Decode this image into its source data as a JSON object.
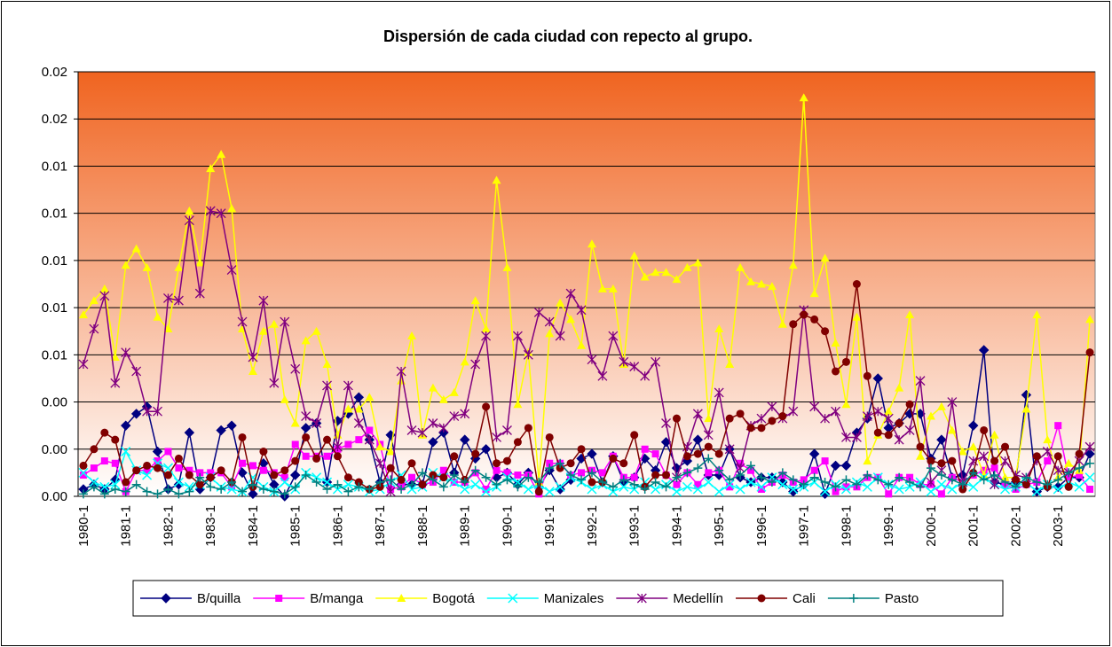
{
  "chart_data": {
    "type": "line",
    "title": "Dispersión de cada ciudad con repecto al grupo.",
    "categories": [
      "1980-1",
      null,
      null,
      null,
      "1981-1",
      null,
      null,
      null,
      "1982-1",
      null,
      null,
      null,
      "1983-1",
      null,
      null,
      null,
      "1984-1",
      null,
      null,
      null,
      "1985-1",
      null,
      null,
      null,
      "1986-1",
      null,
      null,
      null,
      "1987-1",
      null,
      null,
      null,
      "1988-1",
      null,
      null,
      null,
      "1989-1",
      null,
      null,
      null,
      "1990-1",
      null,
      null,
      null,
      "1991-1",
      null,
      null,
      null,
      "1992-1",
      null,
      null,
      null,
      "1993-1",
      null,
      null,
      null,
      "1994-1",
      null,
      null,
      null,
      "1995-1",
      null,
      null,
      null,
      "1996-1",
      null,
      null,
      null,
      "1997-1",
      null,
      null,
      null,
      "1998-1",
      null,
      null,
      null,
      "1999-1",
      null,
      null,
      null,
      "2000-1",
      null,
      null,
      null,
      "2001-1",
      null,
      null,
      null,
      "2002-1",
      null,
      null,
      null,
      "2003-1",
      null,
      null,
      null
    ],
    "ylim": [
      0,
      0.018
    ],
    "yticks": [
      {
        "value": 0,
        "label": "0.00"
      },
      {
        "value": 0.002,
        "label": "0.00"
      },
      {
        "value": 0.004,
        "label": "0.00"
      },
      {
        "value": 0.006,
        "label": "0.01"
      },
      {
        "value": 0.008,
        "label": "0.01"
      },
      {
        "value": 0.01,
        "label": "0.01"
      },
      {
        "value": 0.012,
        "label": "0.01"
      },
      {
        "value": 0.014,
        "label": "0.01"
      },
      {
        "value": 0.016,
        "label": "0.02"
      },
      {
        "value": 0.018,
        "label": "0.02"
      }
    ],
    "grid": true,
    "legend": "bottom",
    "series": [
      {
        "name": "B/quilla",
        "color": "#000080",
        "marker": "diamond",
        "values": [
          0.0003,
          0.0005,
          0.0003,
          0.0007,
          0.003,
          0.0035,
          0.0038,
          0.0019,
          0.0003,
          0.0005,
          0.0027,
          0.0003,
          0.0008,
          0.0028,
          0.003,
          0.001,
          0.0001,
          0.0014,
          0.0005,
          0.0,
          0.0009,
          0.0029,
          0.0031,
          0.0006,
          0.0032,
          0.0035,
          0.0042,
          0.0024,
          0.0006,
          0.0026,
          0.0005,
          0.0005,
          0.0005,
          0.0023,
          0.0027,
          0.001,
          0.0024,
          0.0016,
          0.002,
          0.0008,
          0.001,
          0.0005,
          0.001,
          0.0004,
          0.0011,
          0.0003,
          0.0007,
          0.0016,
          0.0018,
          0.0006,
          0.0017,
          0.0006,
          0.0008,
          0.0016,
          0.0011,
          0.0023,
          0.0012,
          0.0015,
          0.0024,
          0.0009,
          0.0009,
          0.002,
          0.0008,
          0.0006,
          0.0008,
          0.0008,
          0.0006,
          0.0002,
          0.0005,
          0.0018,
          0.0001,
          0.0013,
          0.0013,
          0.0027,
          0.0033,
          0.005,
          0.0029,
          0.0031,
          0.0035,
          0.0035,
          0.0016,
          0.0024,
          0.0008,
          0.0009,
          0.003,
          0.0062,
          0.0006,
          0.0005,
          0.0006,
          0.0043,
          0.0002,
          0.0004,
          0.0004,
          0.0008,
          0.0008,
          0.0018
        ]
      },
      {
        "name": "B/manga",
        "color": "#FF00FF",
        "marker": "square",
        "values": [
          0.0009,
          0.0012,
          0.0015,
          0.0014,
          0.0002,
          0.0011,
          0.0011,
          0.0015,
          0.0019,
          0.0012,
          0.0011,
          0.001,
          0.001,
          0.001,
          0.0004,
          0.0014,
          0.0013,
          0.0011,
          0.001,
          0.0008,
          0.0022,
          0.0017,
          0.0017,
          0.0017,
          0.002,
          0.0022,
          0.0024,
          0.0028,
          0.0022,
          0.0003,
          0.0004,
          0.0008,
          0.0005,
          0.0006,
          0.0011,
          0.0006,
          0.0006,
          0.001,
          0.0003,
          0.0011,
          0.001,
          0.0009,
          0.0009,
          0.0001,
          0.0014,
          0.0014,
          0.0009,
          0.001,
          0.0011,
          0.001,
          0.0017,
          0.0008,
          0.0008,
          0.002,
          0.0018,
          0.0009,
          0.0005,
          0.001,
          0.0005,
          0.001,
          0.0011,
          0.0004,
          0.0014,
          0.0011,
          0.0003,
          0.0006,
          0.0009,
          0.0006,
          0.0007,
          0.0011,
          0.0015,
          0.0002,
          0.0004,
          0.0004,
          0.0008,
          0.0008,
          0.0001,
          0.0008,
          0.0008,
          0.0005,
          0.0005,
          0.0001,
          0.0008,
          0.0006,
          0.0009,
          0.0011,
          0.0012,
          0.0005,
          0.0003,
          0.0005,
          0.0006,
          0.0015,
          0.003,
          0.0008,
          0.0009,
          0.0003
        ]
      },
      {
        "name": "Bogotá",
        "color": "#FFFF00",
        "marker": "triangle",
        "values": [
          0.0077,
          0.0083,
          0.0088,
          0.0059,
          0.0098,
          0.0105,
          0.0097,
          0.0076,
          0.0071,
          0.0097,
          0.0121,
          0.0099,
          0.0139,
          0.0145,
          0.0122,
          0.0071,
          0.0053,
          0.007,
          0.0073,
          0.0041,
          0.0031,
          0.0066,
          0.007,
          0.0056,
          0.0026,
          0.0037,
          0.0037,
          0.0042,
          0.0021,
          0.0019,
          0.0049,
          0.0068,
          0.0026,
          0.0046,
          0.0041,
          0.0044,
          0.0057,
          0.0083,
          0.0071,
          0.0134,
          0.0097,
          0.0039,
          0.0061,
          0.0006,
          0.0069,
          0.0082,
          0.0075,
          0.0064,
          0.0107,
          0.0088,
          0.0088,
          0.0056,
          0.0102,
          0.0093,
          0.0095,
          0.0095,
          0.0092,
          0.0097,
          0.0099,
          0.0033,
          0.0071,
          0.0056,
          0.0097,
          0.0091,
          0.009,
          0.0089,
          0.0073,
          0.0098,
          0.0169,
          0.0086,
          0.0101,
          0.0065,
          0.0039,
          0.0076,
          0.0015,
          0.0026,
          0.0036,
          0.0046,
          0.0077,
          0.0017,
          0.0034,
          0.0038,
          0.0028,
          0.0019,
          0.0021,
          0.0009,
          0.0026,
          0.0008,
          0.0008,
          0.0037,
          0.0077,
          0.0024,
          0.0008,
          0.0014,
          0.0011,
          0.0075
        ]
      },
      {
        "name": "Manizales",
        "color": "#00FFFF",
        "marker": "x",
        "values": [
          0.001,
          0.0006,
          0.0004,
          0.0005,
          0.0019,
          0.0011,
          0.0009,
          0.0014,
          0.0012,
          0.0006,
          0.0004,
          0.0005,
          0.0008,
          0.0004,
          0.0003,
          0.0002,
          0.0008,
          0.0004,
          0.0002,
          0.0006,
          0.0003,
          0.001,
          0.0008,
          0.0006,
          0.0003,
          0.0005,
          0.0004,
          0.0002,
          0.0003,
          0.0006,
          0.0009,
          0.0003,
          0.0004,
          0.001,
          0.0008,
          0.0006,
          0.0003,
          0.0005,
          0.0002,
          0.0004,
          0.0008,
          0.0006,
          0.0003,
          0.0005,
          0.0002,
          0.0004,
          0.0008,
          0.0006,
          0.0003,
          0.0005,
          0.0002,
          0.0004,
          0.0003,
          0.0006,
          0.0003,
          0.0005,
          0.0002,
          0.0004,
          0.0003,
          0.0006,
          0.0002,
          0.0005,
          0.0003,
          0.0006,
          0.0004,
          0.0008,
          0.0005,
          0.0003,
          0.0004,
          0.0006,
          0.0002,
          0.0005,
          0.0003,
          0.0006,
          0.0004,
          0.0008,
          0.0005,
          0.0003,
          0.0004,
          0.0006,
          0.0002,
          0.0005,
          0.0003,
          0.0006,
          0.0004,
          0.0008,
          0.0005,
          0.0003,
          0.0004,
          0.0006,
          0.0002,
          0.0005,
          0.0003,
          0.0006,
          0.0004,
          0.0008
        ]
      },
      {
        "name": "Medellín",
        "color": "#800080",
        "marker": "star",
        "values": [
          0.0056,
          0.0071,
          0.0085,
          0.0048,
          0.0061,
          0.0053,
          0.0036,
          0.0036,
          0.0084,
          0.0083,
          0.0117,
          0.0086,
          0.0121,
          0.012,
          0.0096,
          0.0074,
          0.0059,
          0.0083,
          0.0048,
          0.0074,
          0.0054,
          0.0034,
          0.0031,
          0.0047,
          0.0021,
          0.0047,
          0.0031,
          0.0024,
          0.0014,
          0.0002,
          0.0053,
          0.0028,
          0.0027,
          0.0031,
          0.0029,
          0.0034,
          0.0035,
          0.0056,
          0.0068,
          0.0025,
          0.0028,
          0.0068,
          0.006,
          0.0078,
          0.0074,
          0.0068,
          0.0086,
          0.0079,
          0.0058,
          0.0051,
          0.0068,
          0.0057,
          0.0055,
          0.0051,
          0.0057,
          0.0031,
          0.0008,
          0.0021,
          0.0035,
          0.0026,
          0.0044,
          0.002,
          0.0012,
          0.003,
          0.0033,
          0.0038,
          0.0033,
          0.0036,
          0.0079,
          0.0038,
          0.0033,
          0.0036,
          0.0025,
          0.0025,
          0.0034,
          0.0036,
          0.0033,
          0.0024,
          0.0028,
          0.0049,
          0.0006,
          0.0011,
          0.004,
          0.0006,
          0.0015,
          0.0017,
          0.0005,
          0.0015,
          0.0009,
          0.0008,
          0.0015,
          0.0019,
          0.0011,
          0.001,
          0.0015,
          0.0021
        ]
      },
      {
        "name": "Cali",
        "color": "#800000",
        "marker": "circle",
        "values": [
          0.0013,
          0.002,
          0.0027,
          0.0024,
          0.0006,
          0.0011,
          0.0013,
          0.0012,
          0.0009,
          0.0016,
          0.0009,
          0.0005,
          0.0008,
          0.0011,
          0.0006,
          0.0025,
          0.0004,
          0.0019,
          0.0009,
          0.0011,
          0.0015,
          0.0025,
          0.0016,
          0.0024,
          0.0017,
          0.0008,
          0.0006,
          0.0003,
          0.0004,
          0.0012,
          0.0007,
          0.0014,
          0.0005,
          0.0009,
          0.0008,
          0.0017,
          0.0007,
          0.0018,
          0.0038,
          0.0014,
          0.0015,
          0.0023,
          0.0029,
          0.0002,
          0.0025,
          0.0012,
          0.0014,
          0.002,
          0.0006,
          0.0006,
          0.0016,
          0.0014,
          0.0026,
          0.0004,
          0.0009,
          0.0009,
          0.0033,
          0.0017,
          0.0018,
          0.0021,
          0.0018,
          0.0033,
          0.0035,
          0.0029,
          0.0029,
          0.0032,
          0.0034,
          0.0073,
          0.0077,
          0.0075,
          0.007,
          0.0053,
          0.0057,
          0.009,
          0.0051,
          0.0027,
          0.0026,
          0.0031,
          0.0039,
          0.0021,
          0.0015,
          0.0014,
          0.0015,
          0.0003,
          0.001,
          0.0028,
          0.0015,
          0.0021,
          0.0007,
          0.0005,
          0.0017,
          0.0004,
          0.0017,
          0.0004,
          0.0018,
          0.0061
        ]
      },
      {
        "name": "Pasto",
        "color": "#008080",
        "marker": "plus",
        "values": [
          0.0001,
          0.0004,
          0.0001,
          0.0003,
          0.0002,
          0.0005,
          0.0002,
          0.0001,
          0.0003,
          0.0001,
          0.0002,
          0.0008,
          0.0004,
          0.0003,
          0.0006,
          0.0002,
          0.0005,
          0.0003,
          0.0002,
          0.0001,
          0.0004,
          0.0009,
          0.0006,
          0.0003,
          0.0005,
          0.0002,
          0.0004,
          0.0003,
          0.0006,
          0.0007,
          0.0003,
          0.0005,
          0.001,
          0.0007,
          0.0004,
          0.0009,
          0.0006,
          0.0011,
          0.0008,
          0.0005,
          0.0007,
          0.0004,
          0.0008,
          0.0006,
          0.0012,
          0.0014,
          0.0009,
          0.0007,
          0.001,
          0.0006,
          0.0004,
          0.0007,
          0.0005,
          0.0003,
          0.0006,
          0.0004,
          0.0008,
          0.001,
          0.0012,
          0.0016,
          0.0011,
          0.0007,
          0.0009,
          0.0013,
          0.0008,
          0.0006,
          0.001,
          0.0007,
          0.0005,
          0.0008,
          0.0006,
          0.0004,
          0.0007,
          0.0005,
          0.0009,
          0.0007,
          0.0005,
          0.0008,
          0.0006,
          0.0004,
          0.0012,
          0.0009,
          0.0007,
          0.0005,
          0.001,
          0.0007,
          0.0009,
          0.0006,
          0.0004,
          0.0008,
          0.0006,
          0.0005,
          0.0007,
          0.001,
          0.0012,
          0.0014
        ]
      }
    ]
  }
}
